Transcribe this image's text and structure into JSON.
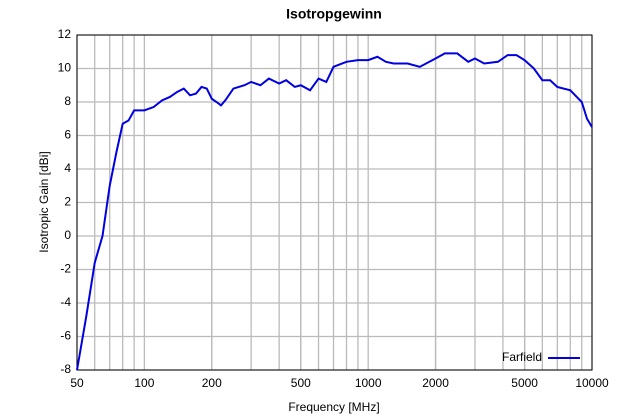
{
  "chart_data": {
    "type": "line",
    "title": "Isotropgewinn",
    "x_label": "Frequency [MHz]",
    "y_label": "Isotropic Gain [dBi]",
    "x_scale": "log",
    "grid": true,
    "legend_position": "lower right",
    "xlim": [
      50,
      10000
    ],
    "xticks": [
      50,
      100,
      200,
      500,
      1000,
      2000,
      5000,
      10000
    ],
    "ylim": [
      -8,
      12
    ],
    "yticks": [
      -8,
      -6,
      -4,
      -2,
      0,
      2,
      4,
      6,
      8,
      10,
      12
    ],
    "x": [
      50,
      55,
      60,
      65,
      70,
      75,
      80,
      85,
      90,
      100,
      110,
      120,
      130,
      140,
      150,
      160,
      170,
      180,
      190,
      200,
      210,
      220,
      230,
      250,
      280,
      300,
      330,
      360,
      400,
      430,
      470,
      500,
      550,
      600,
      650,
      700,
      800,
      900,
      1000,
      1100,
      1200,
      1300,
      1500,
      1700,
      2000,
      2200,
      2500,
      2800,
      3000,
      3300,
      3800,
      4200,
      4600,
      5000,
      5500,
      6000,
      6500,
      7000,
      8000,
      9000,
      9500,
      10000
    ],
    "series": [
      {
        "name": "Farfield",
        "color": "#0000e0",
        "values": [
          -8,
          -4.8,
          -1.6,
          0,
          3,
          5,
          6.7,
          6.9,
          7.5,
          7.5,
          7.7,
          8.1,
          8.3,
          8.6,
          8.8,
          8.4,
          8.5,
          8.9,
          8.8,
          8.2,
          8.0,
          7.8,
          8.1,
          8.8,
          9.0,
          9.2,
          9.0,
          9.4,
          9.1,
          9.3,
          8.9,
          9.0,
          8.7,
          9.4,
          9.2,
          10.1,
          10.4,
          10.5,
          10.5,
          10.7,
          10.4,
          10.3,
          10.3,
          10.1,
          10.6,
          10.9,
          10.9,
          10.4,
          10.6,
          10.3,
          10.4,
          10.8,
          10.8,
          10.5,
          10.0,
          9.3,
          9.3,
          8.9,
          8.7,
          8.0,
          7.0,
          6.5
        ]
      }
    ]
  }
}
